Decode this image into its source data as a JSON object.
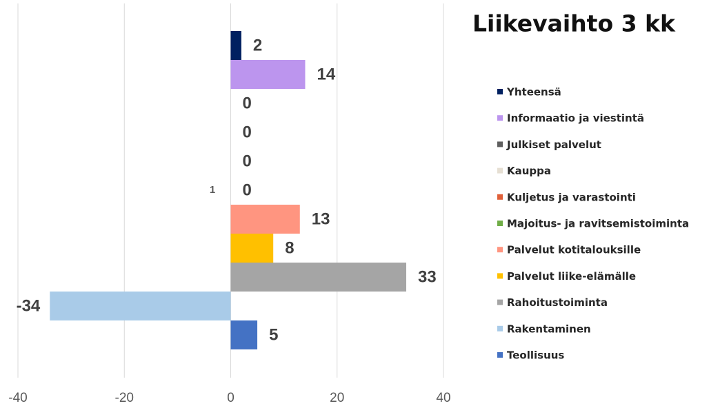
{
  "chart_data": {
    "type": "bar",
    "orientation": "horizontal",
    "title": "Liikevaihto 3 kk",
    "series": [
      {
        "name": "Yhteensä",
        "color": "#002060",
        "values": [
          2
        ]
      },
      {
        "name": "Informaatio ja viestintä",
        "color": "#bc95ee",
        "values": [
          14
        ]
      },
      {
        "name": "Julkiset palvelut",
        "color": "#5f5f5f",
        "values": [
          0
        ]
      },
      {
        "name": "Kauppa",
        "color": "#e6dfd3",
        "values": [
          0
        ]
      },
      {
        "name": "Kuljetus ja varastointi",
        "color": "#e0603a",
        "values": [
          0
        ]
      },
      {
        "name": "Majoitus- ja ravitsemistoiminta",
        "color": "#70ad47",
        "values": [
          0
        ]
      },
      {
        "name": "Palvelut kotitalouksille",
        "color": "#ff9580",
        "values": [
          13
        ]
      },
      {
        "name": "Palvelut liike-elämälle",
        "color": "#ffc000",
        "values": [
          8
        ]
      },
      {
        "name": "Rahoitustoiminta",
        "color": "#a5a5a5",
        "values": [
          33
        ]
      },
      {
        "name": "Rakentaminen",
        "color": "#a9cbe8",
        "values": [
          -34
        ]
      },
      {
        "name": "Teollisuus",
        "color": "#4472c4",
        "values": [
          5
        ]
      }
    ],
    "annotation": "1",
    "xlim": [
      -40,
      40
    ],
    "xticks": [
      -40,
      -20,
      0,
      20,
      40
    ],
    "grid": true,
    "legend": "right"
  }
}
